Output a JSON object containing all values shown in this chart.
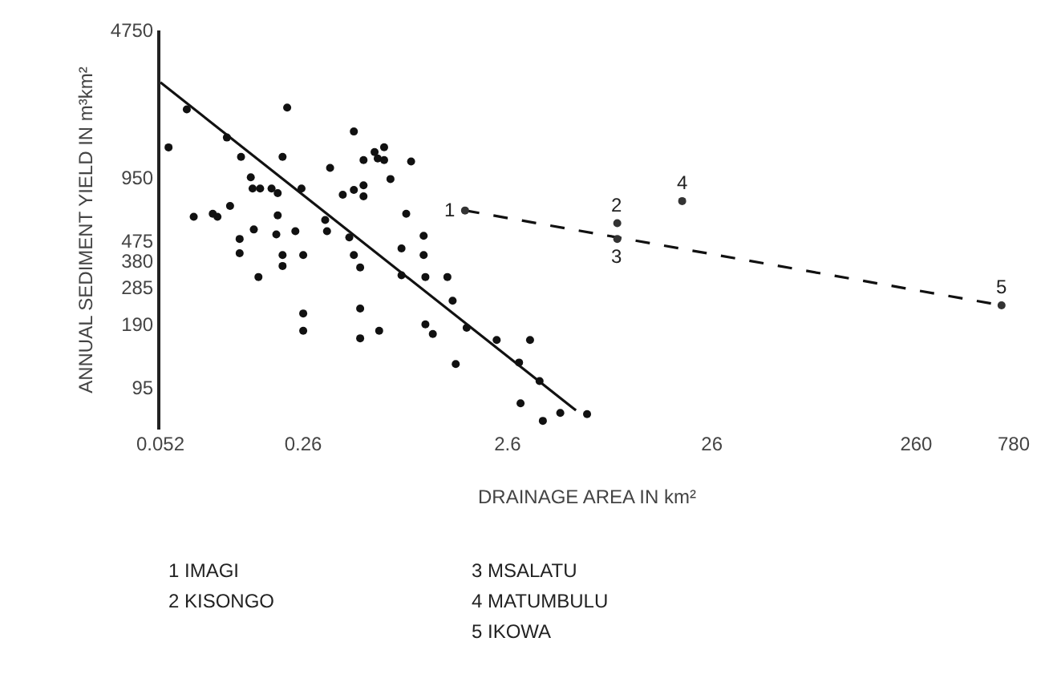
{
  "chart_data": {
    "type": "scatter",
    "xlabel": "DRAINAGE AREA IN km²",
    "ylabel": "ANNUAL SEDIMENT YIELD IN m³km²",
    "log": "xy",
    "marker": "circle",
    "xlim": [
      0.052,
      780
    ],
    "xticks": [
      0.052,
      0.26,
      2.6,
      26,
      260,
      780
    ],
    "ylim": [
      60,
      4750
    ],
    "yticks": [
      95,
      190,
      285,
      380,
      475,
      950,
      4750
    ],
    "series": [
      {
        "color": "#111111",
        "x": [
          0.057,
          0.07,
          0.11,
          0.129,
          0.217,
          0.206,
          0.46,
          0.0757,
          0.0938,
          0.0989,
          0.114,
          0.144,
          0.147,
          0.16,
          0.182,
          0.195,
          0.195,
          0.255,
          0.352,
          0.406,
          0.46,
          0.513,
          0.513,
          0.513,
          0.581,
          0.602,
          0.647,
          0.647,
          0.695,
          0.877,
          0.83,
          0.127,
          0.127,
          0.149,
          0.192,
          0.238,
          0.206,
          0.206,
          0.26,
          0.157,
          0.333,
          0.34,
          0.46,
          0.494,
          0.437,
          0.26,
          0.26,
          0.494,
          0.494,
          0.612,
          0.787,
          0.787,
          1.01,
          1.01,
          1.03,
          1.32,
          1.4,
          1.03,
          1.12,
          1.64,
          2.3,
          1.45,
          3.01,
          3.35,
          2.96,
          3.73,
          3.87,
          4.71,
          6.37
        ],
        "values": [
          1320,
          2000,
          1470,
          1190,
          2040,
          1190,
          1570,
          617,
          638,
          617,
          695,
          951,
          841,
          841,
          841,
          800,
          627,
          841,
          1054,
          785,
          828,
          871,
          772,
          1148,
          1253,
          1169,
          1321,
          1148,
          933,
          1130,
          638,
          484,
          414,
          537,
          509,
          527,
          406,
          360,
          406,
          319,
          596,
          527,
          406,
          354,
          492,
          214,
          177,
          226,
          163,
          177,
          436,
          325,
          501,
          406,
          319,
          319,
          246,
          190,
          171,
          183,
          160,
          123,
          80,
          160,
          125,
          102,
          66,
          72,
          71
        ]
      },
      {
        "type": "line",
        "color": "#111111",
        "line_style": "solid",
        "marker": "none",
        "x": [
          0.052,
          5.62
        ],
        "values": [
          2690,
          74
        ]
      },
      {
        "type": "line",
        "color": "#111111",
        "line_style": "dashed",
        "marker": "none",
        "x": [
          1.61,
          680
        ],
        "values": [
          661,
          234
        ]
      },
      {
        "color": "#333333",
        "x": [
          1.61,
          8.95,
          8.95,
          18.6,
          680
        ],
        "values": [
          661,
          575,
          484,
          733,
          234
        ]
      }
    ],
    "annotations": [
      {
        "text": "1",
        "x": 1.61,
        "y": 661
      },
      {
        "text": "2",
        "x": 8.95,
        "y": 575
      },
      {
        "text": "3",
        "x": 8.95,
        "y": 484
      },
      {
        "text": "4",
        "x": 18.6,
        "y": 733
      },
      {
        "text": "5",
        "x": 680,
        "y": 234
      },
      "1 IMAGI",
      "2 KISONGO",
      "3 MSALATU",
      "4 MATUMBULU",
      "5 IKOWA"
    ]
  }
}
